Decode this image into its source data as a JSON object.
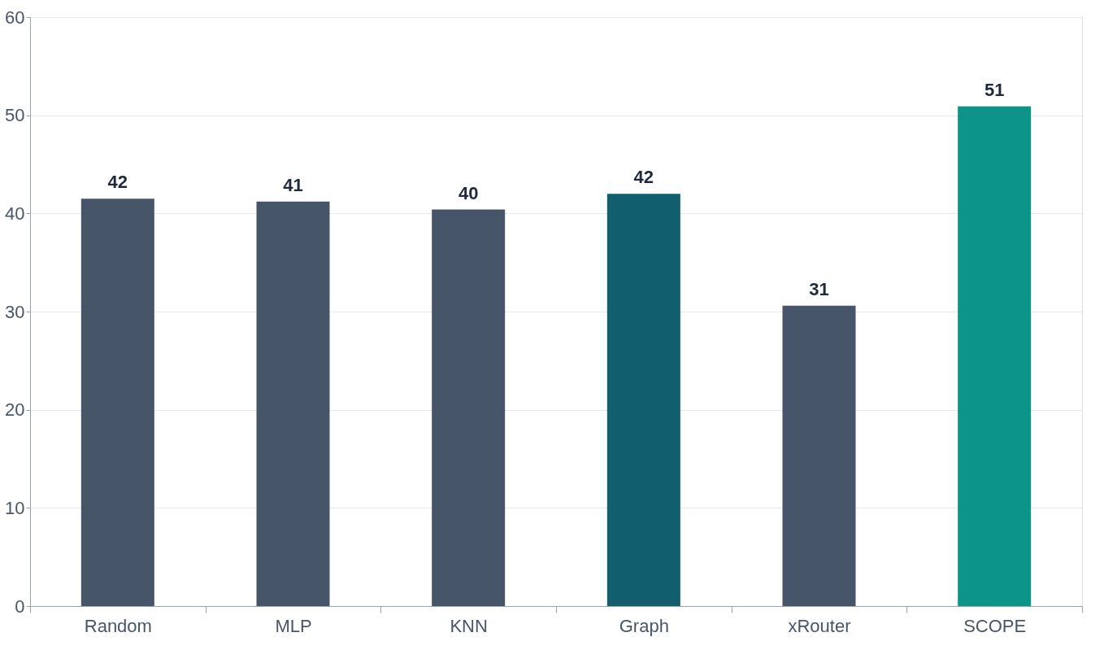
{
  "chart_data": {
    "type": "bar",
    "categories": [
      "Random",
      "MLP",
      "KNN",
      "Graph",
      "xRouter",
      "SCOPE"
    ],
    "values": [
      41.5,
      41.2,
      40.4,
      42.0,
      30.6,
      50.9
    ],
    "colors": [
      "#475569",
      "#475569",
      "#475569",
      "#115e6e",
      "#475569",
      "#0d9488"
    ],
    "value_labels": [
      "42",
      "41",
      "40",
      "42",
      "31",
      "51"
    ],
    "ylim": [
      0,
      60
    ],
    "yticks": [
      0,
      10,
      20,
      30,
      40,
      50,
      60
    ],
    "grid": "y"
  }
}
